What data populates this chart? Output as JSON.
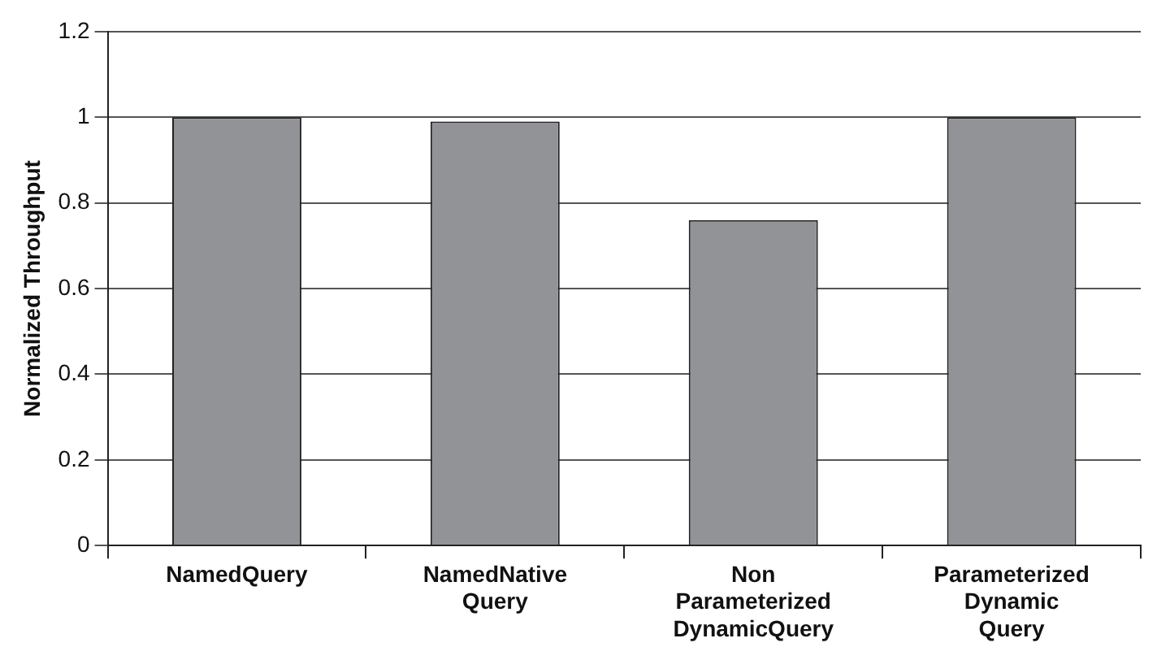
{
  "chart_data": {
    "type": "bar",
    "ylabel": "Normalized Throughput",
    "categories": [
      "NamedQuery",
      "NamedNative Query",
      "Non Parameterized DynamicQuery",
      "Parameterized Dynamic Query"
    ],
    "values": [
      1.0,
      0.99,
      0.76,
      1.0
    ],
    "color": "#929396",
    "ylim": [
      0,
      1.2
    ],
    "yticks": [
      0,
      0.2,
      0.4,
      0.6,
      0.8,
      1,
      1.2
    ],
    "grid": "y",
    "legend": false
  }
}
